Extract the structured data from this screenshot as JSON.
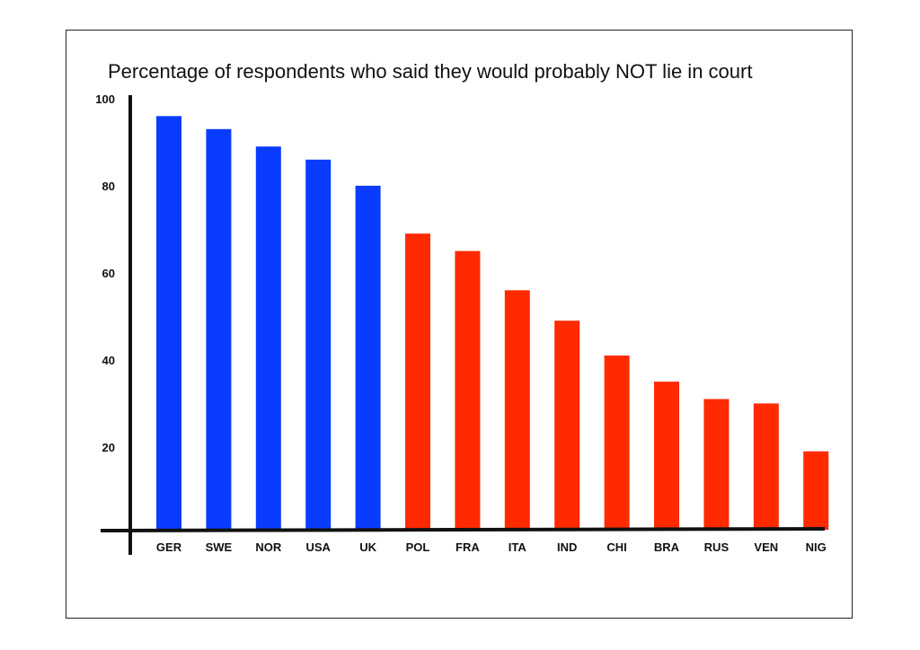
{
  "chart_data": {
    "type": "bar",
    "title": "Percentage of respondents who said they would probably NOT lie in court",
    "xlabel": "",
    "ylabel": "",
    "ylim": [
      0,
      100
    ],
    "yticks": [
      20,
      40,
      60,
      80,
      100
    ],
    "grid": false,
    "categories": [
      "GER",
      "SWE",
      "NOR",
      "USA",
      "UK",
      "POL",
      "FRA",
      "ITA",
      "IND",
      "CHI",
      "BRA",
      "RUS",
      "VEN",
      "NIG"
    ],
    "values": [
      95,
      92,
      88,
      85,
      79,
      68,
      64,
      55,
      48,
      40,
      34,
      30,
      29,
      18
    ],
    "bar_colors": [
      "#0a3cff",
      "#0a3cff",
      "#0a3cff",
      "#0a3cff",
      "#0a3cff",
      "#ff2a00",
      "#ff2a00",
      "#ff2a00",
      "#ff2a00",
      "#ff2a00",
      "#ff2a00",
      "#ff2a00",
      "#ff2a00",
      "#ff2a00"
    ]
  }
}
